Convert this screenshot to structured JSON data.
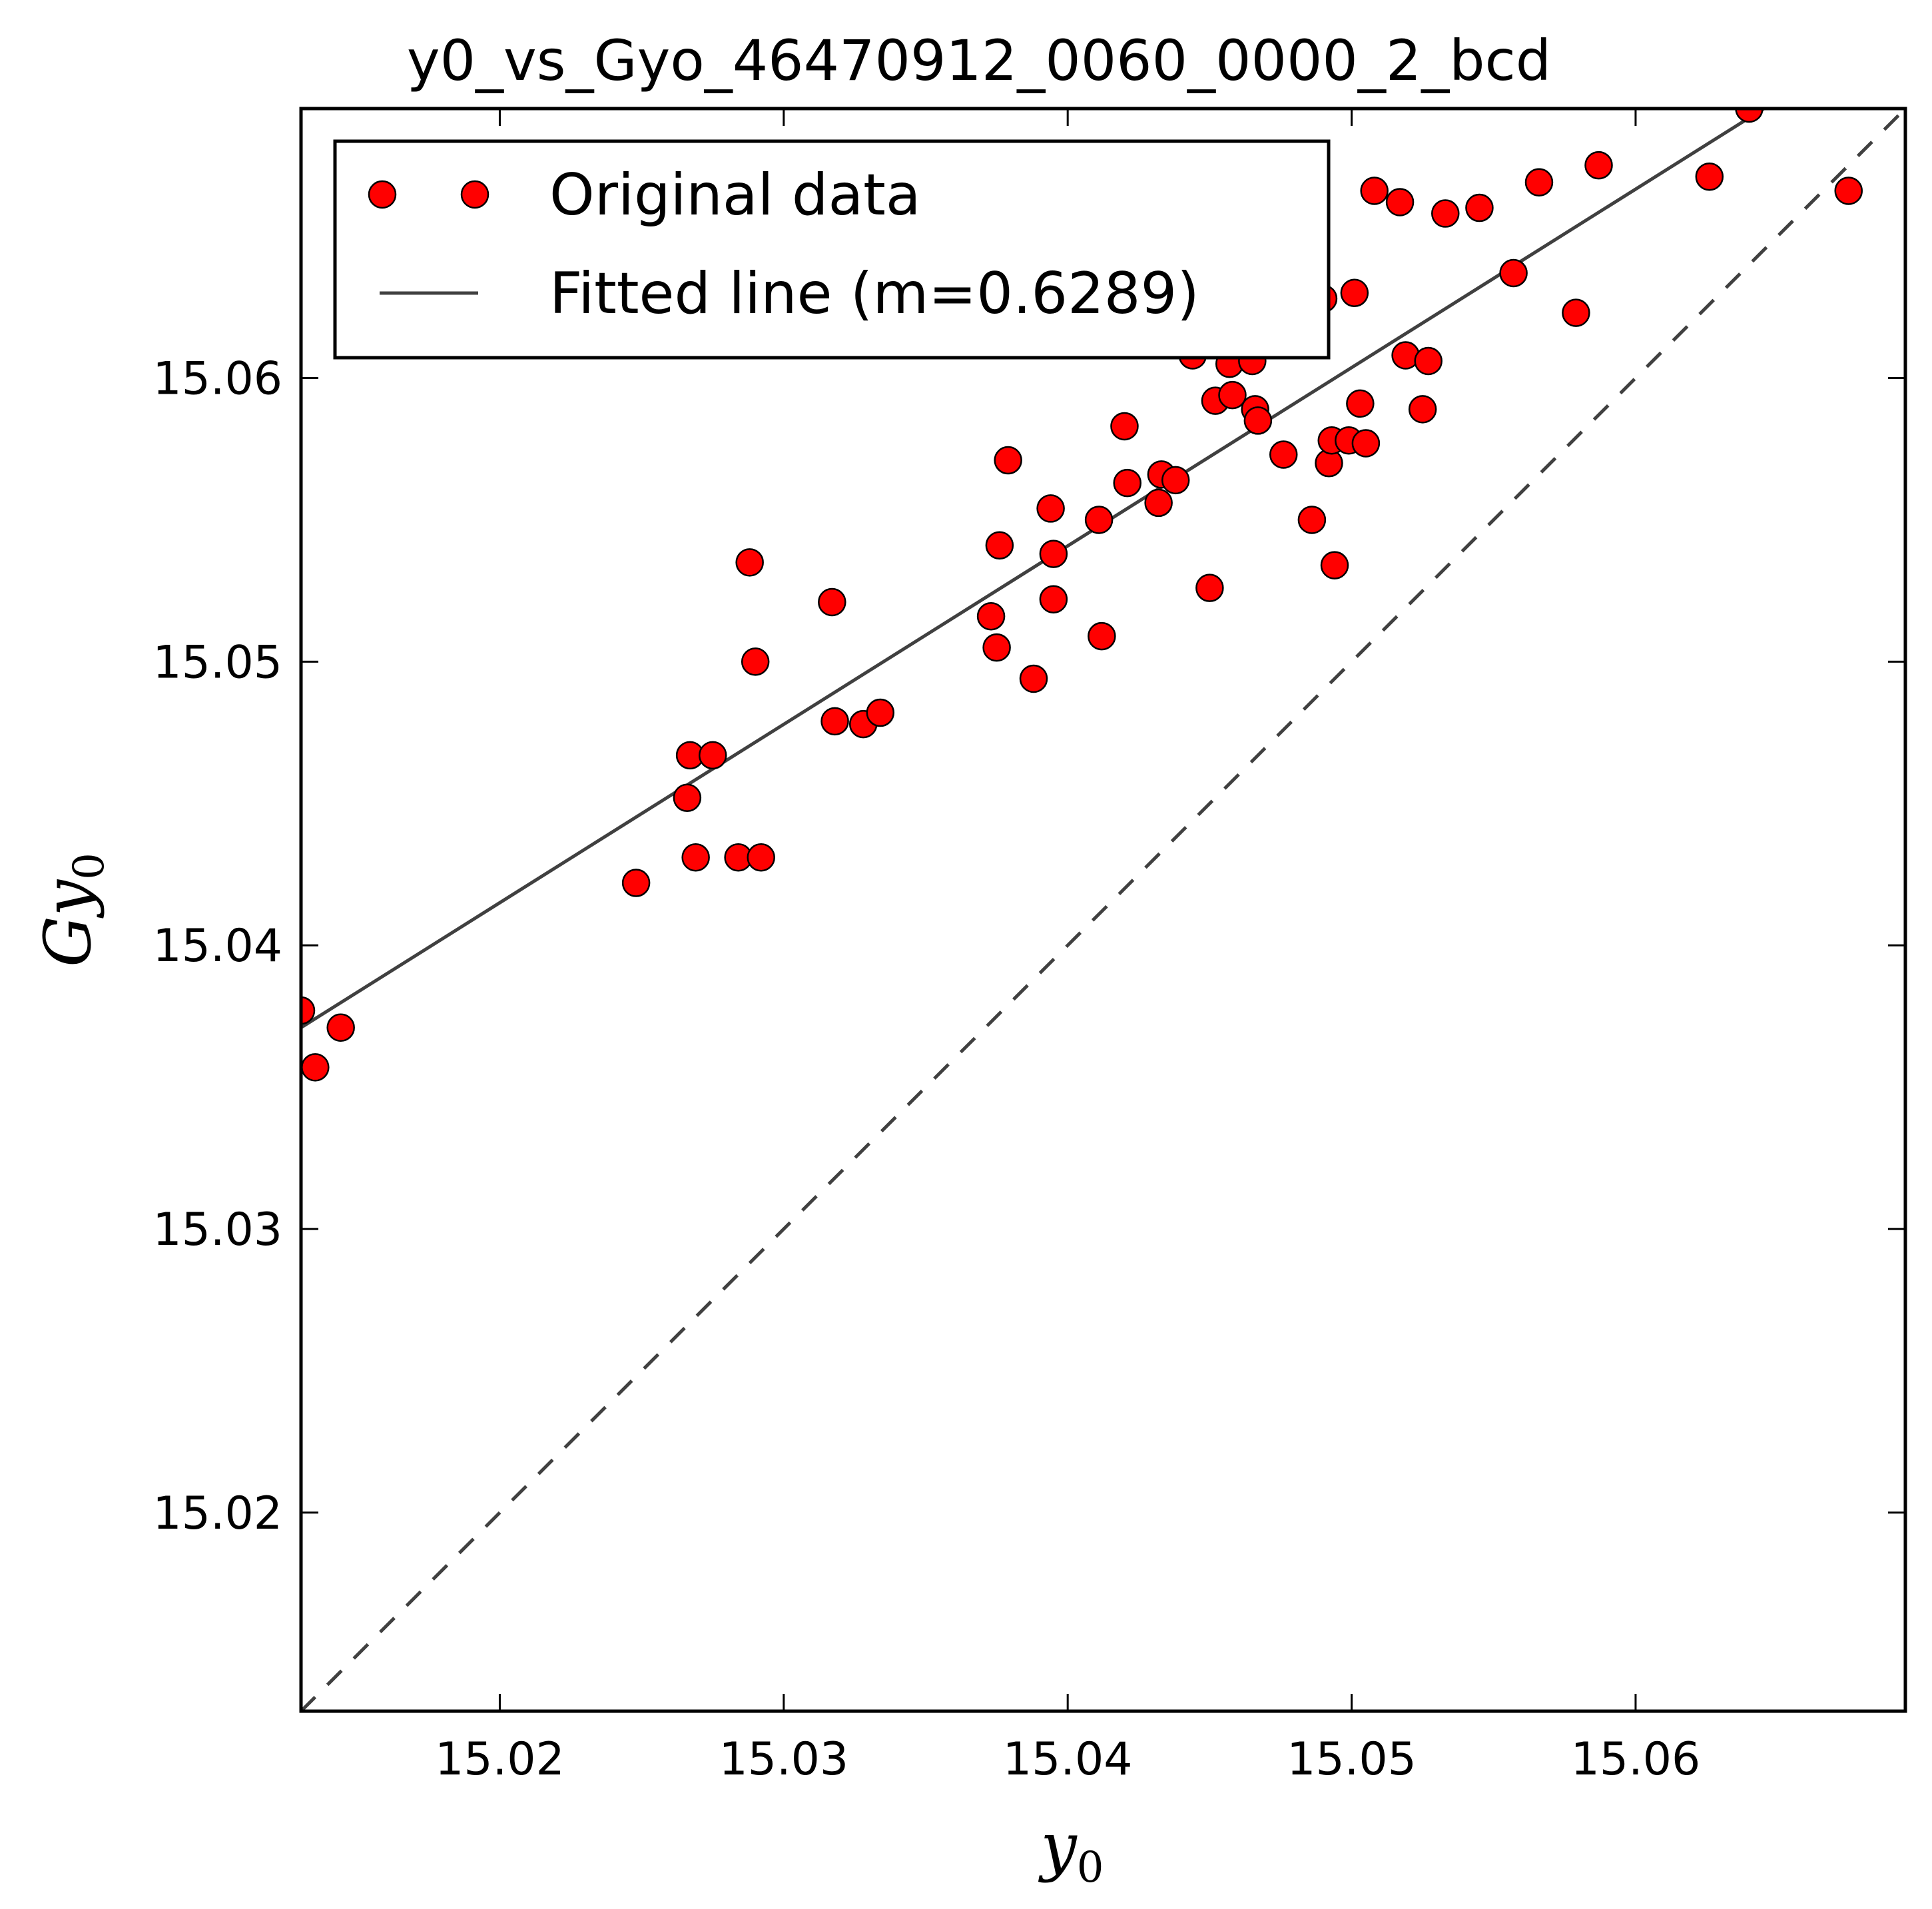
{
  "chart_data": {
    "type": "scatter",
    "title": "y0_vs_Gyo_46470912_0060_0000_2_bcd",
    "xlabel": "y",
    "xlabel_sub": "0",
    "ylabel": "Gy",
    "ylabel_sub": "0",
    "xlim": [
      15.013,
      15.0695
    ],
    "ylim": [
      15.013,
      15.0695
    ],
    "xticks": [
      15.02,
      15.03,
      15.04,
      15.05,
      15.06
    ],
    "yticks": [
      15.02,
      15.03,
      15.04,
      15.05,
      15.06
    ],
    "xtick_labels": [
      "15.02",
      "15.03",
      "15.04",
      "15.05",
      "15.06"
    ],
    "ytick_labels": [
      "15.02",
      "15.03",
      "15.04",
      "15.05",
      "15.06"
    ],
    "grid": false,
    "legend_position": "top-left",
    "legend": {
      "data_label": "Original data",
      "fit_label": "Fitted line (m=0.6289)"
    },
    "fit": {
      "slope": 0.6289,
      "intercept_at_xmin": 15.0371
    },
    "identity_line": true,
    "colors": {
      "points": "#ff0000",
      "point_edge": "#000000",
      "fit_line": "#404040",
      "identity_line": "#404040"
    },
    "points": [
      [
        15.013,
        15.0377
      ],
      [
        15.0135,
        15.0357
      ],
      [
        15.0144,
        15.0371
      ],
      [
        15.0248,
        15.0422
      ],
      [
        15.0266,
        15.0452
      ],
      [
        15.0267,
        15.0467
      ],
      [
        15.0269,
        15.0431
      ],
      [
        15.0275,
        15.0467
      ],
      [
        15.0284,
        15.0431
      ],
      [
        15.0288,
        15.0535
      ],
      [
        15.029,
        15.05
      ],
      [
        15.0292,
        15.0431
      ],
      [
        15.0317,
        15.0521
      ],
      [
        15.0318,
        15.0479
      ],
      [
        15.0328,
        15.0478
      ],
      [
        15.0334,
        15.0482
      ],
      [
        15.0373,
        15.0516
      ],
      [
        15.0375,
        15.0505
      ],
      [
        15.0376,
        15.0541
      ],
      [
        15.0379,
        15.0571
      ],
      [
        15.0388,
        15.0494
      ],
      [
        15.0394,
        15.0554
      ],
      [
        15.0395,
        15.0538
      ],
      [
        15.0395,
        15.0522
      ],
      [
        15.0411,
        15.055
      ],
      [
        15.0412,
        15.0509
      ],
      [
        15.042,
        15.0583
      ],
      [
        15.0421,
        15.0563
      ],
      [
        15.0432,
        15.0556
      ],
      [
        15.0433,
        15.0566
      ],
      [
        15.0438,
        15.0564
      ],
      [
        15.0444,
        15.0608
      ],
      [
        15.045,
        15.0526
      ],
      [
        15.0452,
        15.0592
      ],
      [
        15.0457,
        15.0605
      ],
      [
        15.0458,
        15.0594
      ],
      [
        15.0465,
        15.0606
      ],
      [
        15.0466,
        15.0589
      ],
      [
        15.0467,
        15.0585
      ],
      [
        15.0476,
        15.0573
      ],
      [
        15.0486,
        15.055
      ],
      [
        15.049,
        15.0628
      ],
      [
        15.0492,
        15.057
      ],
      [
        15.0493,
        15.0578
      ],
      [
        15.0494,
        15.0534
      ],
      [
        15.0499,
        15.0578
      ],
      [
        15.0501,
        15.063
      ],
      [
        15.0503,
        15.0591
      ],
      [
        15.0505,
        15.0577
      ],
      [
        15.0508,
        15.0666
      ],
      [
        15.0517,
        15.0662
      ],
      [
        15.0519,
        15.0608
      ],
      [
        15.0525,
        15.0589
      ],
      [
        15.0527,
        15.0606
      ],
      [
        15.0533,
        15.0658
      ],
      [
        15.0545,
        15.066
      ],
      [
        15.0557,
        15.0637
      ],
      [
        15.0566,
        15.0669
      ],
      [
        15.0579,
        15.0623
      ],
      [
        15.0587,
        15.0675
      ],
      [
        15.0626,
        15.0671
      ],
      [
        15.064,
        15.0695
      ],
      [
        15.0675,
        15.0666
      ]
    ]
  }
}
